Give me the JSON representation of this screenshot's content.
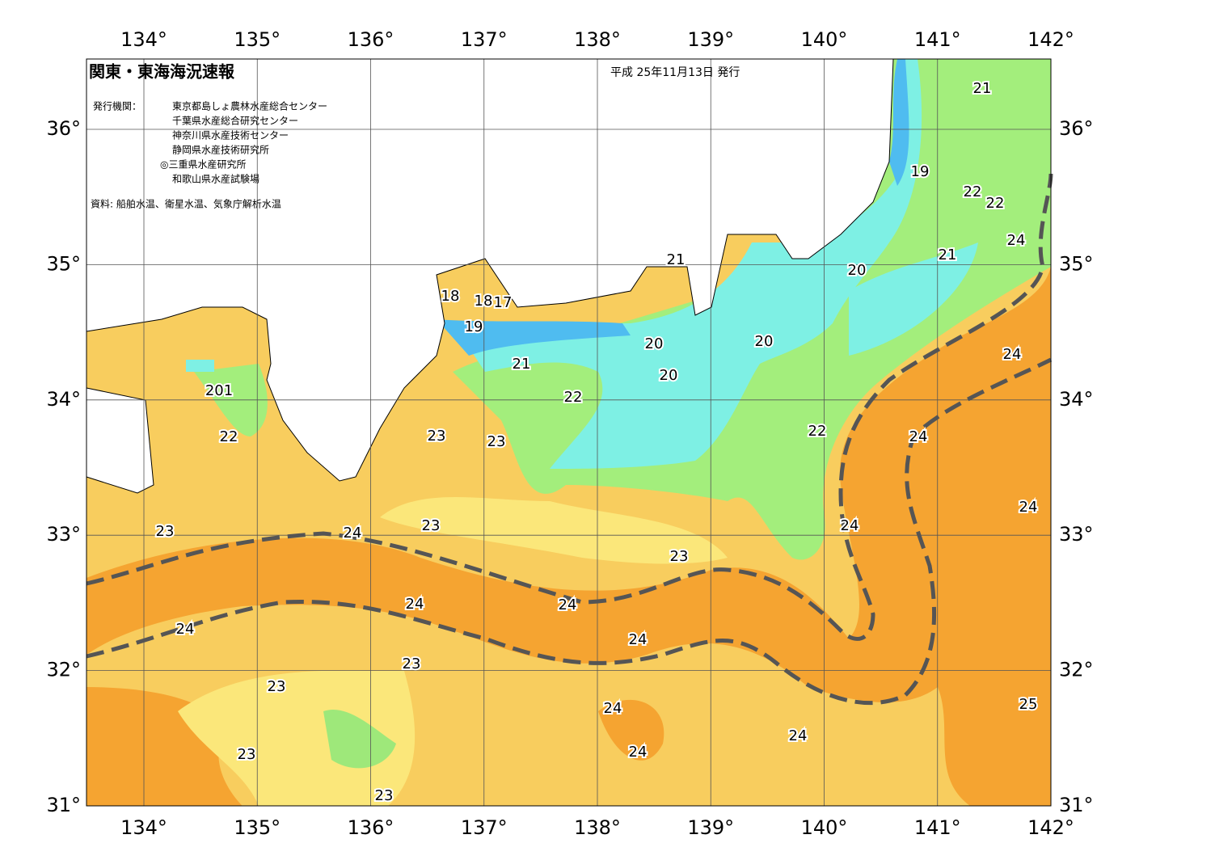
{
  "map": {
    "title": "関東・東海海況速報",
    "date": "平成 25年11月13日 発行",
    "issuer_label": "発行機関：",
    "issuers": [
      "東京都島しょ農林水産総合センター",
      "千葉県水産総合研究センター",
      "神奈川県水産技術センター",
      "静岡県水産技術研究所",
      "◎三重県水産研究所",
      "和歌山県水産試験場"
    ],
    "source": "資料: 船舶水温、衛星水温、気象庁解析水温",
    "lon_labels": [
      "134°",
      "135°",
      "136°",
      "137°",
      "138°",
      "139°",
      "140°",
      "141°",
      "142°"
    ],
    "lat_labels": [
      "36°",
      "35°",
      "34°",
      "33°",
      "32°",
      "31°"
    ],
    "contour_labels": [
      "21",
      "19",
      "22",
      "22",
      "24",
      "21",
      "20",
      "21",
      "18",
      "18",
      "17",
      "19",
      "20",
      "20",
      "21",
      "20",
      "24",
      "201",
      "22",
      "22",
      "23",
      "23",
      "22",
      "24",
      "24",
      "23",
      "24",
      "24",
      "23",
      "23",
      "24",
      "24",
      "24",
      "24",
      "23",
      "23",
      "24",
      "25",
      "24",
      "24",
      "23",
      "23"
    ]
  }
}
